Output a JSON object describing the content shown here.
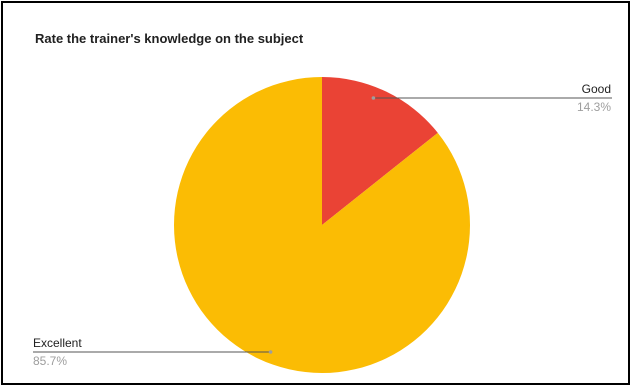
{
  "chart_data": {
    "type": "pie",
    "title": "Rate the trainer's knowledge on the subject",
    "start_angle_deg": 0,
    "direction": "clockwise",
    "legend": "none (slice labels with leader lines)",
    "slices": [
      {
        "label": "Good",
        "value": 14.3,
        "percent_text": "14.3%",
        "color": "#EA4335"
      },
      {
        "label": "Excellent",
        "value": 85.7,
        "percent_text": "85.7%",
        "color": "#FBBC04"
      }
    ]
  }
}
